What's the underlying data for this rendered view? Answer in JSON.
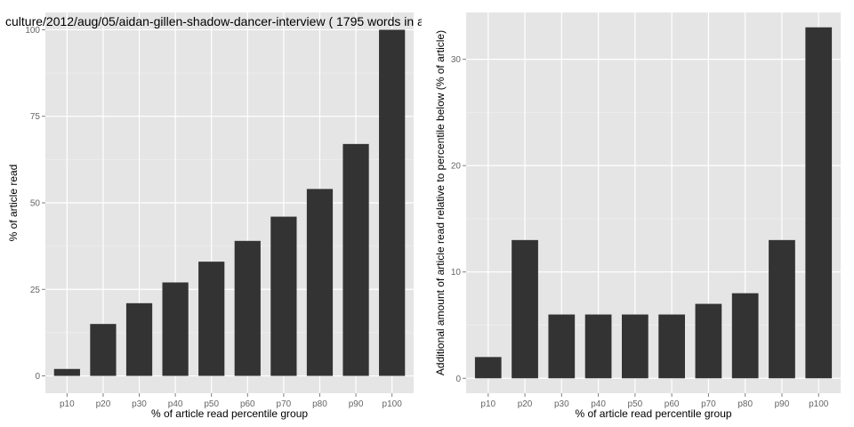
{
  "figure": {
    "title": "culture/2012/aug/05/aidan-gillen-shadow-dancer-interview ( 1795 words in a",
    "panel_background": "#e5e5e5",
    "grid_color": "#ffffff",
    "bar_color": "#333333",
    "tick_text_color": "#666666"
  },
  "chart_data": [
    {
      "type": "bar",
      "title": "culture/2012/aug/05/aidan-gillen-shadow-dancer-interview ( 1795 words in a",
      "xlabel": "% of article read percentile group",
      "ylabel": "% of article read",
      "categories": [
        "p10",
        "p20",
        "p30",
        "p40",
        "p50",
        "p60",
        "p70",
        "p80",
        "p90",
        "p100"
      ],
      "values": [
        2,
        15,
        21,
        27,
        33,
        39,
        46,
        54,
        67,
        100
      ],
      "ylim": [
        -5,
        105
      ],
      "yticks": [
        0,
        25,
        50,
        75,
        100
      ],
      "grid": true
    },
    {
      "type": "bar",
      "title": "",
      "xlabel": "% of article read percentile group",
      "ylabel": "Additional amount of article read relative to percentile below (% of article)",
      "categories": [
        "p10",
        "p20",
        "p30",
        "p40",
        "p50",
        "p60",
        "p70",
        "p80",
        "p90",
        "p100"
      ],
      "values": [
        2,
        13,
        6,
        6,
        6,
        6,
        7,
        8,
        13,
        33
      ],
      "ylim": [
        -1.4,
        34.4
      ],
      "yticks": [
        0,
        10,
        20,
        30
      ],
      "grid": true
    }
  ]
}
